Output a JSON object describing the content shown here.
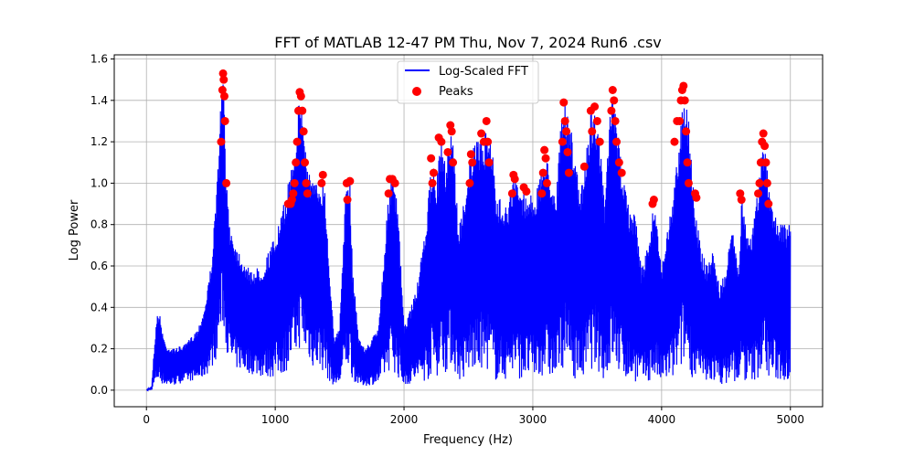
{
  "chart_data": {
    "type": "line",
    "title": "FFT of MATLAB 12-47 PM Thu, Nov 7, 2024 Run6 .csv",
    "xlabel": "Frequency (Hz)",
    "ylabel": "Log Power",
    "xlim": [
      -250,
      5250
    ],
    "ylim": [
      -0.08,
      1.62
    ],
    "xticks": [
      0,
      1000,
      2000,
      3000,
      4000,
      5000
    ],
    "xtick_labels": [
      "0",
      "1000",
      "2000",
      "3000",
      "4000",
      "5000"
    ],
    "yticks": [
      0.0,
      0.2,
      0.4,
      0.6,
      0.8,
      1.0,
      1.2,
      1.4,
      1.6
    ],
    "ytick_labels": [
      "0.0",
      "0.2",
      "0.4",
      "0.6",
      "0.8",
      "1.0",
      "1.2",
      "1.4",
      "1.6"
    ],
    "grid": true,
    "legend_position": "top-center",
    "series": [
      {
        "name": "Log-Scaled FFT",
        "kind": "line",
        "color": "#0000ff",
        "envelope_x": [
          0,
          40,
          60,
          80,
          100,
          120,
          150,
          200,
          300,
          400,
          450,
          500,
          540,
          570,
          590,
          600,
          620,
          650,
          700,
          800,
          900,
          1000,
          1050,
          1100,
          1150,
          1190,
          1200,
          1250,
          1300,
          1350,
          1380,
          1420,
          1460,
          1500,
          1540,
          1560,
          1580,
          1600,
          1650,
          1700,
          1800,
          1850,
          1890,
          1910,
          1930,
          1960,
          2000,
          2100,
          2150,
          2200,
          2220,
          2250,
          2290,
          2320,
          2360,
          2380,
          2420,
          2450,
          2500,
          2520,
          2560,
          2600,
          2620,
          2650,
          2680,
          2720,
          2760,
          2800,
          2850,
          2880,
          2920,
          2960,
          3000,
          3050,
          3090,
          3120,
          3180,
          3220,
          3250,
          3280,
          3320,
          3360,
          3400,
          3450,
          3490,
          3520,
          3560,
          3600,
          3620,
          3650,
          3690,
          3720,
          3760,
          3800,
          3840,
          3900,
          3940,
          3970,
          4000,
          4050,
          4100,
          4150,
          4170,
          4200,
          4250,
          4300,
          4350,
          4400,
          4450,
          4500,
          4550,
          4600,
          4620,
          4660,
          4700,
          4740,
          4780,
          4800,
          4830,
          4860,
          4900,
          4950,
          5000
        ],
        "envelope_top": [
          0.0,
          0.02,
          0.2,
          0.36,
          0.38,
          0.3,
          0.22,
          0.2,
          0.22,
          0.3,
          0.4,
          0.6,
          0.9,
          1.3,
          1.53,
          1.5,
          1.0,
          0.8,
          0.7,
          0.58,
          0.6,
          0.75,
          0.85,
          1.0,
          1.2,
          1.44,
          1.42,
          1.1,
          1.0,
          1.02,
          1.04,
          0.6,
          0.25,
          0.3,
          0.9,
          1.0,
          1.01,
          0.6,
          0.25,
          0.2,
          0.3,
          0.7,
          1.02,
          1.02,
          1.0,
          0.8,
          0.3,
          0.5,
          0.7,
          1.0,
          1.12,
          1.0,
          1.22,
          1.1,
          1.28,
          1.25,
          0.8,
          0.85,
          1.1,
          1.14,
          1.2,
          1.24,
          1.2,
          1.3,
          1.22,
          0.9,
          0.95,
          0.9,
          1.04,
          1.0,
          0.98,
          0.95,
          0.95,
          1.0,
          1.16,
          1.1,
          0.95,
          1.3,
          1.39,
          1.3,
          1.2,
          0.95,
          1.08,
          1.35,
          1.37,
          1.2,
          0.9,
          1.35,
          1.45,
          1.3,
          1.1,
          1.0,
          0.85,
          0.85,
          0.6,
          0.7,
          0.92,
          0.8,
          0.6,
          0.8,
          1.0,
          1.3,
          1.47,
          1.4,
          0.95,
          0.7,
          0.6,
          0.68,
          0.5,
          0.58,
          0.8,
          0.6,
          0.95,
          0.8,
          0.75,
          0.95,
          1.15,
          1.24,
          1.0,
          0.9,
          0.85,
          0.8,
          0.8
        ],
        "envelope_bottom": [
          0.0,
          0.0,
          0.02,
          0.04,
          0.04,
          0.03,
          0.02,
          0.02,
          0.04,
          0.05,
          0.06,
          0.1,
          0.15,
          0.25,
          0.3,
          0.3,
          0.2,
          0.12,
          0.1,
          0.08,
          0.06,
          0.06,
          0.07,
          0.1,
          0.15,
          0.2,
          0.2,
          0.15,
          0.1,
          0.1,
          0.08,
          0.04,
          0.02,
          0.03,
          0.08,
          0.1,
          0.1,
          0.05,
          0.02,
          0.02,
          0.03,
          0.06,
          0.1,
          0.1,
          0.08,
          0.05,
          0.02,
          0.04,
          0.04,
          0.05,
          0.1,
          0.06,
          0.1,
          0.08,
          0.12,
          0.1,
          0.05,
          0.04,
          0.06,
          0.1,
          0.06,
          0.1,
          0.08,
          0.1,
          0.06,
          0.04,
          0.04,
          0.05,
          0.08,
          0.06,
          0.05,
          0.05,
          0.04,
          0.05,
          0.08,
          0.06,
          0.04,
          0.1,
          0.12,
          0.08,
          0.06,
          0.04,
          0.05,
          0.1,
          0.1,
          0.08,
          0.04,
          0.1,
          0.12,
          0.08,
          0.06,
          0.05,
          0.04,
          0.04,
          0.03,
          0.04,
          0.05,
          0.04,
          0.03,
          0.04,
          0.05,
          0.1,
          0.12,
          0.1,
          0.05,
          0.04,
          0.03,
          0.04,
          0.03,
          0.03,
          0.04,
          0.03,
          0.05,
          0.04,
          0.04,
          0.05,
          0.08,
          0.1,
          0.06,
          0.05,
          0.04,
          0.04,
          0.04
        ]
      },
      {
        "name": "Peaks",
        "kind": "scatter",
        "color": "#ff0000",
        "x": [
          590,
          595,
          600,
          605,
          610,
          580,
          620,
          1190,
          1200,
          1180,
          1210,
          1170,
          1220,
          1160,
          1230,
          1150,
          1240,
          1140,
          1250,
          1130,
          1120,
          1110,
          1100,
          1360,
          1370,
          1555,
          1580,
          1560,
          1890,
          1910,
          1930,
          1880,
          2210,
          2220,
          2230,
          2270,
          2290,
          2360,
          2370,
          2380,
          2340,
          2520,
          2530,
          2510,
          2600,
          2620,
          2640,
          2650,
          2660,
          2850,
          2860,
          2840,
          2930,
          2950,
          3090,
          3100,
          3080,
          3070,
          3110,
          3240,
          3250,
          3260,
          3230,
          3270,
          3280,
          3400,
          3450,
          3480,
          3500,
          3520,
          3460,
          3620,
          3630,
          3610,
          3640,
          3650,
          3670,
          3690,
          3930,
          3940,
          4100,
          4120,
          4150,
          4160,
          4170,
          4180,
          4140,
          4190,
          4200,
          4210,
          4260,
          4270,
          4610,
          4620,
          4790,
          4780,
          4800,
          4770,
          4810,
          4760,
          4820,
          4750,
          4830
        ],
        "y": [
          1.45,
          1.53,
          1.5,
          1.42,
          1.3,
          1.2,
          1.0,
          1.44,
          1.42,
          1.35,
          1.35,
          1.2,
          1.25,
          1.1,
          1.1,
          1.0,
          1.0,
          0.95,
          0.95,
          0.92,
          0.9,
          0.9,
          0.9,
          1.0,
          1.04,
          1.0,
          1.01,
          0.92,
          1.02,
          1.02,
          1.0,
          0.95,
          1.12,
          1.0,
          1.05,
          1.22,
          1.2,
          1.28,
          1.25,
          1.1,
          1.15,
          1.14,
          1.1,
          1.0,
          1.24,
          1.2,
          1.3,
          1.2,
          1.1,
          1.04,
          1.02,
          0.95,
          0.98,
          0.96,
          1.16,
          1.12,
          1.05,
          0.95,
          1.0,
          1.39,
          1.3,
          1.25,
          1.2,
          1.15,
          1.05,
          1.08,
          1.35,
          1.37,
          1.3,
          1.2,
          1.25,
          1.45,
          1.4,
          1.35,
          1.3,
          1.2,
          1.1,
          1.05,
          0.9,
          0.92,
          1.2,
          1.3,
          1.4,
          1.45,
          1.47,
          1.4,
          1.3,
          1.25,
          1.1,
          1.0,
          0.95,
          0.93,
          0.95,
          0.92,
          1.24,
          1.2,
          1.18,
          1.1,
          1.1,
          1.0,
          1.0,
          0.95,
          0.9
        ]
      }
    ]
  }
}
